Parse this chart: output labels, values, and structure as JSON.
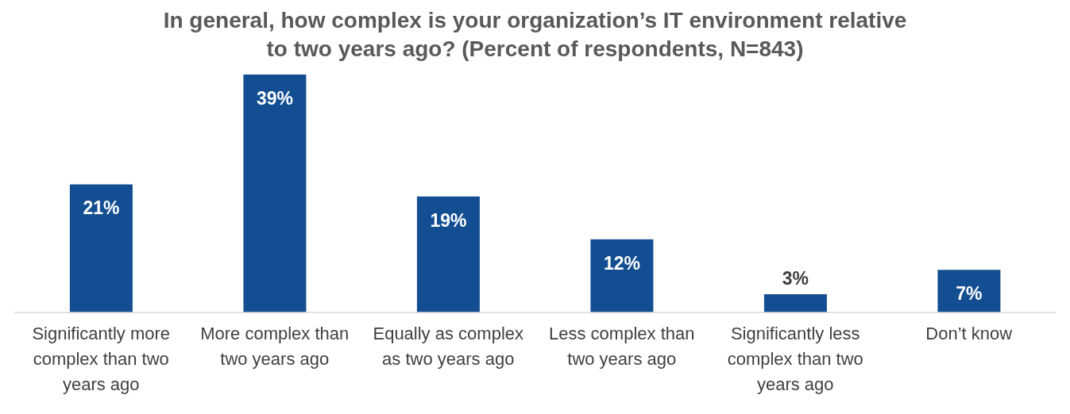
{
  "chart_data": {
    "type": "bar",
    "title": "In general, how complex is your organization’s IT environment relative to two years ago? (Percent of respondents, N=843)",
    "categories": [
      "Significantly more complex than two years ago",
      "More complex than two years ago",
      "Equally as complex as two years ago",
      "Less complex than two years ago",
      "Significantly less complex than two years ago",
      "Don’t know"
    ],
    "values": [
      21,
      39,
      19,
      12,
      3,
      7
    ],
    "value_labels": [
      "21%",
      "39%",
      "19%",
      "12%",
      "3%",
      "7%"
    ],
    "color": "#124e91"
  }
}
